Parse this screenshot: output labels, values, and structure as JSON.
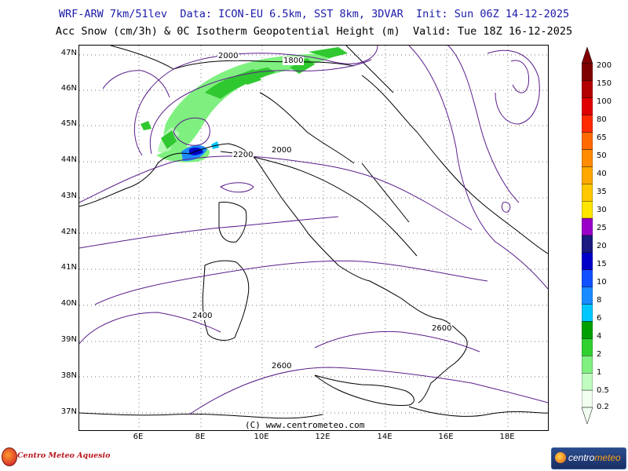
{
  "header": {
    "line1": "WRF-ARW 7km/51lev  Data: ICON-EU 6.5km, SST 8km, 3DVAR  Init: Sun 06Z 14-12-2025",
    "line2": "Acc Snow (cm/3h) & 0C Isotherm Geopotential Height (m)  Valid: Tue 18Z 16-12-2025"
  },
  "map": {
    "lat_labels": [
      "47N",
      "46N",
      "45N",
      "44N",
      "43N",
      "42N",
      "41N",
      "40N",
      "39N",
      "38N",
      "37N"
    ],
    "lon_labels": [
      "6E",
      "8E",
      "10E",
      "12E",
      "14E",
      "16E",
      "18E"
    ],
    "contour_labels": [
      "2000",
      "1800",
      "2000",
      "2200",
      "2400",
      "2600",
      "2600"
    ],
    "copyright": "(C) www.centrometeo.com"
  },
  "colorbar": {
    "labels": [
      "200",
      "150",
      "100",
      "80",
      "65",
      "50",
      "40",
      "35",
      "30",
      "25",
      "20",
      "15",
      "10",
      "8",
      "6",
      "4",
      "2",
      "1",
      "0.5",
      "0.2"
    ],
    "colors": [
      "#7f0000",
      "#b30000",
      "#e00000",
      "#ff2a00",
      "#ff6a00",
      "#ff8c00",
      "#ffa800",
      "#ffc800",
      "#ffe600",
      "#9a00c8",
      "#1a1a80",
      "#0000c8",
      "#1050ff",
      "#1a8cff",
      "#00c8ff",
      "#00a000",
      "#30d030",
      "#80f080",
      "#c0fcc0",
      "#f0fff0"
    ]
  },
  "logos": {
    "left": "Centro Meteo Aquesio",
    "right_a": "centro",
    "right_b": "meteo"
  }
}
